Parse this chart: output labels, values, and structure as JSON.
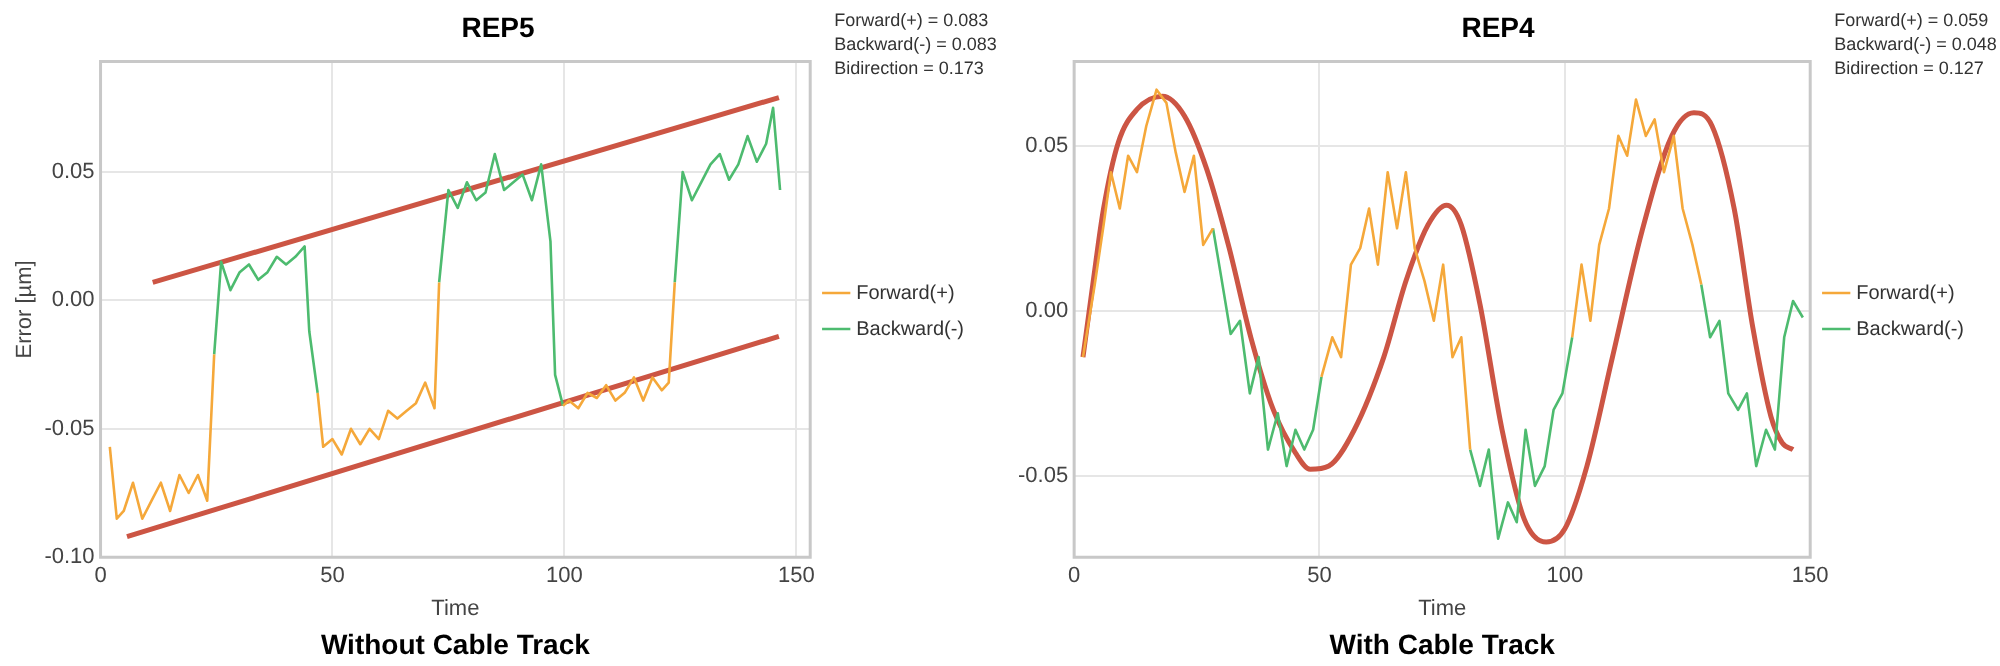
{
  "chart_data": [
    {
      "type": "line",
      "title": "REP5",
      "subtitle": "Without Cable Track",
      "xlabel": "Time",
      "ylabel": "Error [µm]",
      "annotations": [
        "Forward(+) = 0.083",
        "Backward(-) = 0.083",
        "Bidirection = 0.173"
      ],
      "xlim": [
        0,
        153
      ],
      "xticks": [
        0,
        50,
        100,
        150
      ],
      "ylim": [
        -0.1,
        0.093
      ],
      "yticks": [
        {
          "value": -0.1,
          "label": "-0.10"
        },
        {
          "value": -0.05,
          "label": "-0.05"
        },
        {
          "value": 0,
          "label": "0.00"
        },
        {
          "value": 0.05,
          "label": "0.05"
        }
      ],
      "grid": true,
      "legend": "right",
      "series": [
        {
          "name": "Forward(+)",
          "color": "#f5a83a",
          "x": [
            2,
            3.5,
            5,
            7,
            9,
            11,
            13,
            15,
            17,
            19,
            21,
            23,
            24.5,
            35,
            46.8,
            48,
            50,
            52,
            54,
            56,
            58,
            60,
            62,
            64,
            66,
            68,
            70,
            72,
            73,
            86,
            99.7,
            101,
            103,
            105,
            107,
            109,
            111,
            113,
            115,
            117,
            119,
            121,
            122.5,
            123.8
          ],
          "values": [
            -0.057,
            -0.085,
            -0.082,
            -0.071,
            -0.085,
            -0.078,
            -0.071,
            -0.082,
            -0.068,
            -0.075,
            -0.068,
            -0.078,
            -0.021,
            null,
            -0.036,
            -0.057,
            -0.054,
            -0.06,
            -0.05,
            -0.056,
            -0.05,
            -0.054,
            -0.043,
            -0.046,
            -0.043,
            -0.04,
            -0.032,
            -0.042,
            0.007,
            null,
            -0.041,
            -0.039,
            -0.042,
            -0.036,
            -0.038,
            -0.033,
            -0.039,
            -0.036,
            -0.03,
            -0.039,
            -0.03,
            -0.035,
            -0.032,
            0.007
          ]
        },
        {
          "name": "Backward(-)",
          "color": "#4dbb6f",
          "x": [
            24.5,
            26,
            28,
            30,
            32,
            34,
            36,
            38,
            40,
            42,
            44,
            45,
            46.8,
            60,
            73,
            75,
            77,
            79,
            81,
            83,
            85,
            87,
            89,
            91,
            93,
            95,
            97,
            98,
            99.7,
            112,
            123.8,
            125.5,
            127.5,
            129.5,
            131.5,
            133.5,
            135.5,
            137.5,
            139.5,
            141.5,
            143.5,
            145,
            146.5
          ],
          "values": [
            -0.021,
            0.015,
            0.004,
            0.011,
            0.014,
            0.008,
            0.011,
            0.017,
            0.014,
            0.017,
            0.021,
            -0.012,
            -0.036,
            null,
            0.007,
            0.043,
            0.036,
            0.046,
            0.039,
            0.042,
            0.057,
            0.043,
            0.046,
            0.049,
            0.039,
            0.053,
            0.023,
            -0.029,
            -0.041,
            null,
            0.007,
            0.05,
            0.039,
            0.046,
            0.053,
            0.057,
            0.047,
            0.053,
            0.064,
            0.054,
            0.061,
            0.075,
            0.043
          ]
        },
        {
          "color": "#cc5544",
          "x": [
            11.25,
            146.25
          ],
          "values": [
            0.007,
            0.079
          ]
        },
        {
          "color": "#cc5544",
          "x": [
            5.7,
            146.25
          ],
          "values": [
            -0.092,
            -0.014
          ]
        }
      ]
    },
    {
      "type": "line",
      "title": "REP4",
      "subtitle": "With Cable Track",
      "xlabel": "Time",
      "annotations": [
        "Forward(+) = 0.059",
        "Backward(-) = 0.048",
        "Bidirection = 0.127"
      ],
      "xlim": [
        0,
        150
      ],
      "xticks": [
        0,
        50,
        100,
        150
      ],
      "ylim": [
        -0.0746,
        0.0755
      ],
      "yticks": [
        {
          "value": -0.05,
          "label": "-0.05"
        },
        {
          "value": 0,
          "label": "0.00"
        },
        {
          "value": 0.05,
          "label": "0.05"
        }
      ],
      "grid": true,
      "legend": "right",
      "series": [
        {
          "name": "Forward(+)",
          "color": "#f5a83a",
          "x": [
            1.8,
            4.2,
            6,
            7.5,
            9.3,
            11,
            12.8,
            14.7,
            16.8,
            18.8,
            20.7,
            22.5,
            24.4,
            26.3,
            28.3,
            40,
            50.4,
            52.6,
            54.4,
            56.4,
            58.3,
            60.1,
            61.9,
            63.9,
            65.8,
            67.6,
            69.4,
            71.4,
            73.3,
            75.2,
            77.1,
            78.9,
            80.7,
            90,
            101.5,
            103.4,
            105.2,
            107,
            109,
            110.9,
            112.7,
            114.5,
            116.5,
            118.3,
            120.2,
            122.2,
            124,
            126,
            127.8
          ],
          "values": [
            -0.014,
            0.008,
            0.026,
            0.042,
            0.031,
            0.047,
            0.042,
            0.056,
            0.067,
            0.063,
            0.048,
            0.036,
            0.047,
            0.02,
            0.025,
            null,
            -0.02,
            -0.008,
            -0.014,
            0.014,
            0.019,
            0.031,
            0.014,
            0.042,
            0.025,
            0.042,
            0.019,
            0.009,
            -0.003,
            0.014,
            -0.014,
            -0.008,
            -0.042,
            null,
            -0.008,
            0.014,
            -0.003,
            0.02,
            0.031,
            0.053,
            0.047,
            0.064,
            0.053,
            0.058,
            0.042,
            0.053,
            0.031,
            0.02,
            0.008
          ]
        },
        {
          "name": "Backward(-)",
          "color": "#4dbb6f",
          "x": [
            28.3,
            30,
            31.9,
            33.8,
            35.8,
            37.6,
            39.5,
            41.5,
            43.3,
            45.1,
            46.9,
            48.7,
            50.4,
            65,
            80.7,
            82.7,
            84.5,
            86.4,
            88.4,
            90.2,
            92,
            93.9,
            95.9,
            97.7,
            99.5,
            101.5,
            115,
            127.8,
            129.6,
            131.5,
            133.3,
            135.3,
            137.1,
            139,
            141,
            142.8,
            144.7,
            146.5,
            148.5
          ],
          "values": [
            0.025,
            0.01,
            -0.007,
            -0.003,
            -0.025,
            -0.014,
            -0.042,
            -0.031,
            -0.047,
            -0.036,
            -0.042,
            -0.036,
            -0.02,
            null,
            -0.042,
            -0.053,
            -0.042,
            -0.069,
            -0.058,
            -0.064,
            -0.036,
            -0.053,
            -0.047,
            -0.03,
            -0.025,
            -0.008,
            null,
            0.008,
            -0.008,
            -0.003,
            -0.025,
            -0.03,
            -0.025,
            -0.047,
            -0.036,
            -0.042,
            -0.008,
            0.003,
            -0.002
          ]
        },
        {
          "color": "#cc5544",
          "x": [
            1.8,
            3.8,
            6,
            9,
            12.8,
            18,
            22.5,
            27,
            31.6,
            36,
            40.6,
            45.1,
            48.1,
            51.9,
            57.1,
            63.1,
            67.6,
            72.1,
            75.9,
            78.9,
            82.7,
            87.2,
            91.7,
            96.2,
            100,
            104.5,
            109.7,
            115.7,
            121.8,
            126.3,
            130,
            134.5,
            138.3,
            142,
            144.3,
            146.5
          ],
          "values": [
            -0.014,
            0.008,
            0.031,
            0.051,
            0.061,
            0.065,
            0.059,
            0.043,
            0.019,
            -0.008,
            -0.03,
            -0.043,
            -0.048,
            -0.047,
            -0.036,
            -0.014,
            0.009,
            0.026,
            0.032,
            0.026,
            0.002,
            -0.036,
            -0.063,
            -0.07,
            -0.066,
            -0.047,
            -0.014,
            0.024,
            0.053,
            0.06,
            0.056,
            0.031,
            -0.005,
            -0.032,
            -0.04,
            -0.042
          ]
        }
      ]
    }
  ]
}
